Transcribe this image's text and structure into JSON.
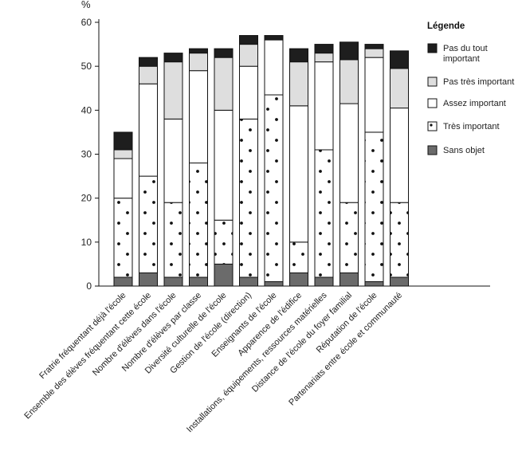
{
  "chart_data": {
    "type": "bar",
    "stacked": true,
    "unit": "%",
    "ylim": [
      0,
      60
    ],
    "yticks": [
      0,
      10,
      20,
      30,
      40,
      50,
      60
    ],
    "grid": false,
    "legend_title": "Légende",
    "legend_placement": "top-right",
    "categories": [
      "Fratrie fréquentant déjà l'école",
      "Ensemble des élèves fréquentant cette école",
      "Nombre d'élèves dans l'école",
      "Nombre d'élèves par classe",
      "Diversité culturelle de l'école",
      "Gestion de l'école (direction)",
      "Enseignants de l'école",
      "Apparence de l'édifice",
      "Installations, équipements, ressources matérielles",
      "Distance de l'école du foyer familial",
      "Réputation de l'école",
      "Partenariats entre école et communauté"
    ],
    "series": [
      {
        "name": "Sans objet",
        "color": "#6b6b6b",
        "pattern": "solid",
        "values": [
          2,
          3,
          2,
          2,
          5,
          2,
          1,
          3,
          2,
          3,
          1,
          2
        ]
      },
      {
        "name": "Très important",
        "color": "#ffffff",
        "pattern": "dots",
        "values": [
          18,
          22,
          17,
          26,
          10,
          36,
          42.5,
          7,
          29,
          16,
          34,
          17
        ]
      },
      {
        "name": "Assez important",
        "color": "#ffffff",
        "pattern": "blank",
        "values": [
          9,
          21,
          19,
          21,
          25,
          12,
          12.5,
          31,
          20,
          22.5,
          17,
          21.5
        ]
      },
      {
        "name": "Pas très important",
        "color": "#dedede",
        "pattern": "solid",
        "values": [
          2,
          4,
          13,
          4,
          12,
          5,
          0,
          10,
          2,
          10,
          2,
          9
        ]
      },
      {
        "name": "Pas du tout important",
        "color": "#1e1e1e",
        "pattern": "solid",
        "values": [
          4,
          2,
          2,
          1,
          2,
          2,
          1,
          3,
          2,
          4,
          1,
          4
        ]
      }
    ],
    "legend_order": [
      "Pas du tout important",
      "Pas très important",
      "Assez important",
      "Très important",
      "Sans objet"
    ]
  }
}
